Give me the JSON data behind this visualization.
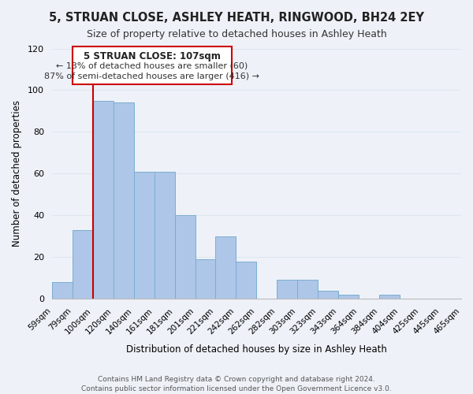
{
  "title": "5, STRUAN CLOSE, ASHLEY HEATH, RINGWOOD, BH24 2EY",
  "subtitle": "Size of property relative to detached houses in Ashley Heath",
  "xlabel": "Distribution of detached houses by size in Ashley Heath",
  "ylabel": "Number of detached properties",
  "footer_line1": "Contains HM Land Registry data © Crown copyright and database right 2024.",
  "footer_line2": "Contains public sector information licensed under the Open Government Licence v3.0.",
  "bin_edges_labels": [
    "59sqm",
    "79sqm",
    "100sqm",
    "120sqm",
    "140sqm",
    "161sqm",
    "181sqm",
    "201sqm",
    "221sqm",
    "242sqm",
    "262sqm",
    "282sqm",
    "303sqm",
    "323sqm",
    "343sqm",
    "364sqm",
    "384sqm",
    "404sqm",
    "425sqm",
    "445sqm",
    "465sqm"
  ],
  "bar_values": [
    8,
    33,
    95,
    94,
    61,
    61,
    40,
    19,
    30,
    18,
    0,
    9,
    9,
    4,
    2,
    0,
    2,
    0,
    0,
    0
  ],
  "bar_color": "#aec6e8",
  "bar_edge_color": "#7aaed0",
  "grid_color": "#dde6f0",
  "background_color": "#eef2f8",
  "vline_color": "#cc0000",
  "vline_pos": 2,
  "annotation_title": "5 STRUAN CLOSE: 107sqm",
  "annotation_line1": "← 13% of detached houses are smaller (60)",
  "annotation_line2": "87% of semi-detached houses are larger (416) →",
  "annotation_box_color": "#ffffff",
  "annotation_box_edge": "#cc0000",
  "ylim": [
    0,
    120
  ],
  "yticks": [
    0,
    20,
    40,
    60,
    80,
    100,
    120
  ]
}
